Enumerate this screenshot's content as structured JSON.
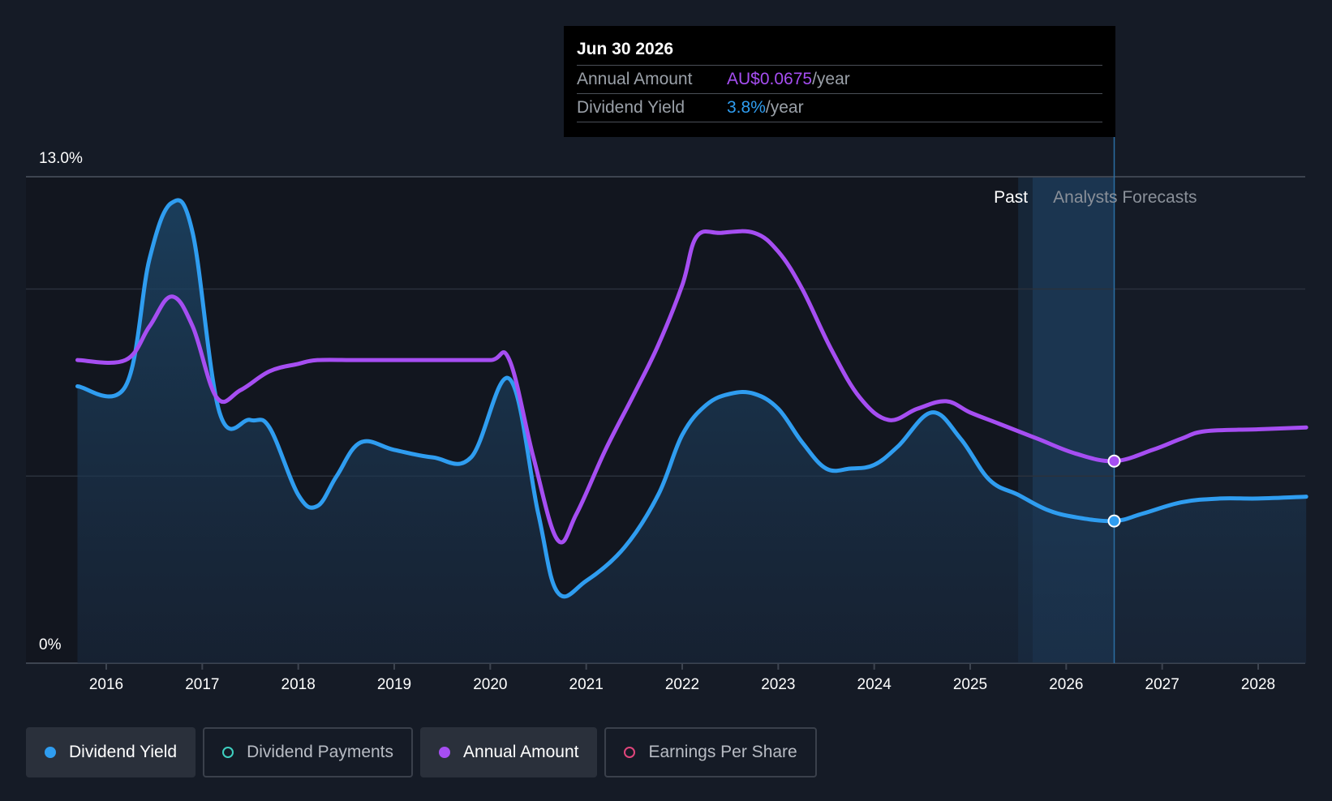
{
  "tooltip": {
    "date": "Jun 30 2026",
    "annual_amount_label": "Annual Amount",
    "annual_amount_value": "AU$0.0675",
    "annual_amount_unit": "/year",
    "dividend_yield_label": "Dividend Yield",
    "dividend_yield_value": "3.8%",
    "dividend_yield_unit": "/year"
  },
  "regions": {
    "past": "Past",
    "forecast": "Analysts Forecasts"
  },
  "legend": [
    {
      "label": "Dividend Yield",
      "color": "#2f9df0",
      "active": true,
      "marker": "filled"
    },
    {
      "label": "Dividend Payments",
      "color": "#3fd0c0",
      "active": false,
      "marker": "hollow"
    },
    {
      "label": "Annual Amount",
      "color": "#a64ef2",
      "active": true,
      "marker": "filled"
    },
    {
      "label": "Earnings Per Share",
      "color": "#e0457b",
      "active": false,
      "marker": "hollow"
    }
  ],
  "colors": {
    "yield": "#2f9df0",
    "amount": "#a64ef2",
    "background": "#151b26",
    "grid": "#303844"
  },
  "chart_data": {
    "type": "line",
    "title": "",
    "y_axis_labels": [
      "13.0%",
      "0%"
    ],
    "ylim": [
      0,
      13
    ],
    "xlim": [
      2015.55,
      2028.5
    ],
    "x_ticks": [
      2016,
      2017,
      2018,
      2019,
      2020,
      2021,
      2022,
      2023,
      2024,
      2025,
      2026,
      2027,
      2028
    ],
    "past_forecast_split": 2025.5,
    "forecast_shade_start": 2025.65,
    "hover_x": 2026.5,
    "series": [
      {
        "name": "Dividend Yield",
        "unit": "%",
        "filled": true,
        "points": [
          [
            2015.7,
            7.4
          ],
          [
            2016.2,
            7.4
          ],
          [
            2016.45,
            10.8
          ],
          [
            2016.68,
            12.3
          ],
          [
            2016.9,
            11.5
          ],
          [
            2017.18,
            6.7
          ],
          [
            2017.5,
            6.5
          ],
          [
            2017.7,
            6.3
          ],
          [
            2018.0,
            4.5
          ],
          [
            2018.2,
            4.2
          ],
          [
            2018.4,
            5.0
          ],
          [
            2018.65,
            5.9
          ],
          [
            2019.0,
            5.7
          ],
          [
            2019.4,
            5.5
          ],
          [
            2019.8,
            5.5
          ],
          [
            2020.2,
            7.6
          ],
          [
            2020.5,
            4.0
          ],
          [
            2020.7,
            1.9
          ],
          [
            2021.0,
            2.2
          ],
          [
            2021.4,
            3.1
          ],
          [
            2021.75,
            4.5
          ],
          [
            2022.0,
            6.1
          ],
          [
            2022.25,
            6.9
          ],
          [
            2022.5,
            7.2
          ],
          [
            2022.75,
            7.2
          ],
          [
            2023.0,
            6.8
          ],
          [
            2023.25,
            5.9
          ],
          [
            2023.5,
            5.2
          ],
          [
            2023.75,
            5.2
          ],
          [
            2024.0,
            5.3
          ],
          [
            2024.25,
            5.8
          ],
          [
            2024.6,
            6.7
          ],
          [
            2024.9,
            6.0
          ],
          [
            2025.2,
            4.9
          ],
          [
            2025.5,
            4.5
          ],
          [
            2025.8,
            4.1
          ],
          [
            2026.1,
            3.9
          ],
          [
            2026.5,
            3.8
          ],
          [
            2026.8,
            4.0
          ],
          [
            2027.2,
            4.3
          ],
          [
            2027.6,
            4.4
          ],
          [
            2028.0,
            4.4
          ],
          [
            2028.5,
            4.45
          ]
        ]
      },
      {
        "name": "Annual Amount",
        "unit": "AU$",
        "filled": false,
        "points": [
          [
            2015.7,
            8.1
          ],
          [
            2016.2,
            8.1
          ],
          [
            2016.45,
            9.0
          ],
          [
            2016.68,
            9.8
          ],
          [
            2016.9,
            9.0
          ],
          [
            2017.15,
            7.1
          ],
          [
            2017.4,
            7.3
          ],
          [
            2017.7,
            7.8
          ],
          [
            2018.0,
            8.0
          ],
          [
            2018.2,
            8.1
          ],
          [
            2018.6,
            8.1
          ],
          [
            2019.0,
            8.1
          ],
          [
            2019.5,
            8.1
          ],
          [
            2020.0,
            8.1
          ],
          [
            2020.2,
            8.1
          ],
          [
            2020.45,
            5.5
          ],
          [
            2020.7,
            3.3
          ],
          [
            2020.9,
            4.0
          ],
          [
            2021.2,
            5.7
          ],
          [
            2021.5,
            7.2
          ],
          [
            2021.75,
            8.5
          ],
          [
            2022.0,
            10.1
          ],
          [
            2022.15,
            11.4
          ],
          [
            2022.4,
            11.5
          ],
          [
            2022.75,
            11.5
          ],
          [
            2023.0,
            11.0
          ],
          [
            2023.25,
            10.0
          ],
          [
            2023.55,
            8.4
          ],
          [
            2023.85,
            7.1
          ],
          [
            2024.15,
            6.5
          ],
          [
            2024.45,
            6.8
          ],
          [
            2024.75,
            7.0
          ],
          [
            2025.0,
            6.7
          ],
          [
            2025.3,
            6.4
          ],
          [
            2025.7,
            6.0
          ],
          [
            2026.1,
            5.6
          ],
          [
            2026.5,
            5.4
          ],
          [
            2026.9,
            5.7
          ],
          [
            2027.2,
            6.0
          ],
          [
            2027.45,
            6.2
          ],
          [
            2028.0,
            6.25
          ],
          [
            2028.5,
            6.3
          ]
        ]
      }
    ]
  }
}
